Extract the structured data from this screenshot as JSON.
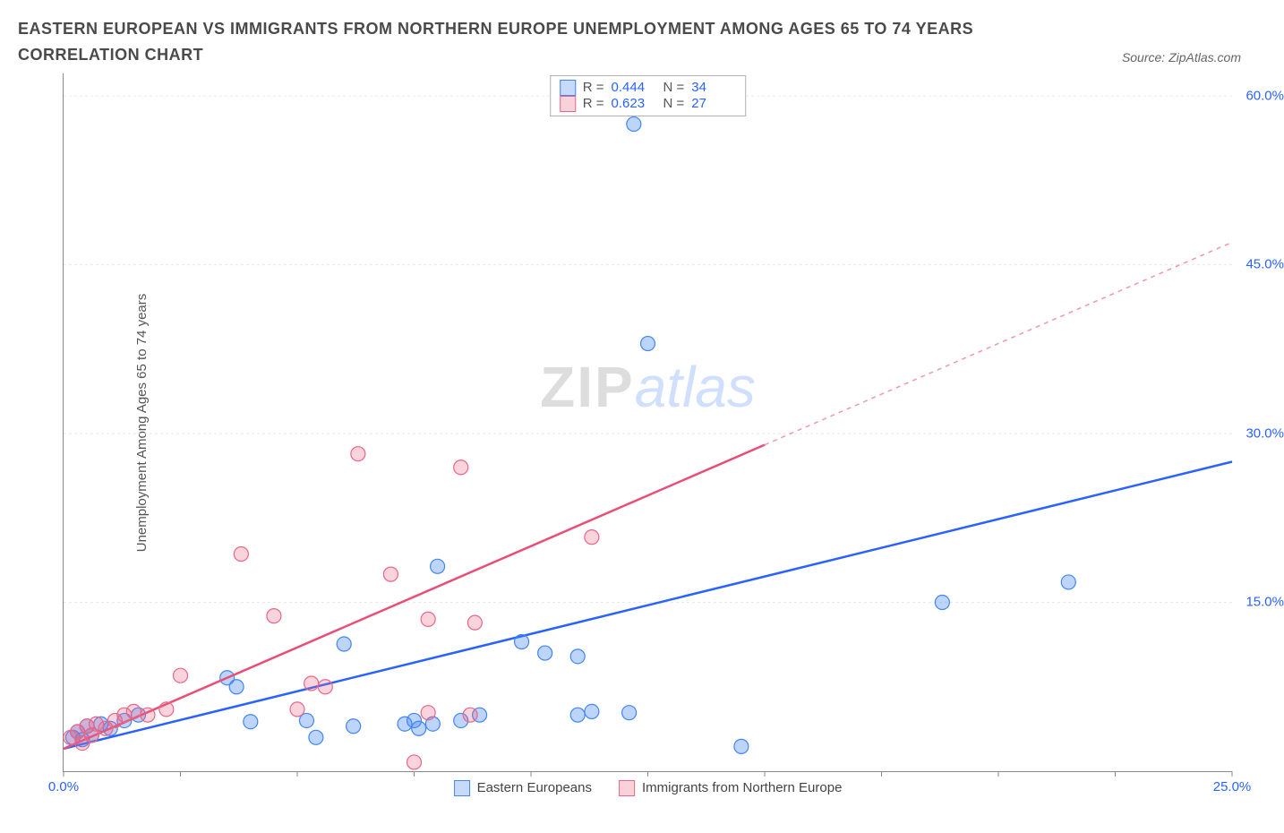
{
  "title": "EASTERN EUROPEAN VS IMMIGRANTS FROM NORTHERN EUROPE UNEMPLOYMENT AMONG AGES 65 TO 74 YEARS CORRELATION CHART",
  "source_label": "Source: ZipAtlas.com",
  "yaxis_label": "Unemployment Among Ages 65 to 74 years",
  "watermark": {
    "zip": "ZIP",
    "atlas": "atlas"
  },
  "stats": [
    {
      "color": "blue",
      "r_label": "R =",
      "r_val": "0.444",
      "n_label": "N =",
      "n_val": "34"
    },
    {
      "color": "pink",
      "r_label": "R =",
      "r_val": "0.623",
      "n_label": "N =",
      "n_val": "27"
    }
  ],
  "legend_bottom": [
    {
      "color": "blue",
      "label": "Eastern Europeans"
    },
    {
      "color": "pink",
      "label": "Immigrants from Northern Europe"
    }
  ],
  "chart": {
    "type": "scatter",
    "xlim": [
      0,
      25
    ],
    "ylim": [
      0,
      62
    ],
    "grid_color": "#e8e8e8",
    "background_color": "#ffffff",
    "y_gridlines": [
      15,
      30,
      45,
      60
    ],
    "y_tick_labels": [
      "15.0%",
      "30.0%",
      "45.0%",
      "60.0%"
    ],
    "x_ticks": [
      0,
      2.5,
      5,
      7.5,
      10,
      12.5,
      15,
      17.5,
      20,
      22.5,
      25
    ],
    "x_tick_labels": {
      "0": "0.0%",
      "25": "25.0%"
    },
    "series": [
      {
        "name": "Eastern Europeans",
        "marker_color": "rgba(66,133,244,0.35)",
        "marker_stroke": "#4285f4",
        "marker_radius": 8,
        "trend_color": "#2962ff",
        "trend_width": 2.5,
        "trend_solid_to_x": 25,
        "trend": {
          "x1": 0,
          "y1": 2.0,
          "x2": 25,
          "y2": 27.5
        },
        "points": [
          [
            0.2,
            3.0
          ],
          [
            0.3,
            3.5
          ],
          [
            0.4,
            2.8
          ],
          [
            0.5,
            4.0
          ],
          [
            0.6,
            3.2
          ],
          [
            0.8,
            4.2
          ],
          [
            1.0,
            3.8
          ],
          [
            1.3,
            4.5
          ],
          [
            1.6,
            5.0
          ],
          [
            12.2,
            57.5
          ],
          [
            12.5,
            38.0
          ],
          [
            8.0,
            18.2
          ],
          [
            3.5,
            8.3
          ],
          [
            3.7,
            7.5
          ],
          [
            4.0,
            4.4
          ],
          [
            5.2,
            4.5
          ],
          [
            5.4,
            3.0
          ],
          [
            6.0,
            11.3
          ],
          [
            6.2,
            4.0
          ],
          [
            7.3,
            4.2
          ],
          [
            7.5,
            4.5
          ],
          [
            7.6,
            3.8
          ],
          [
            7.9,
            4.2
          ],
          [
            8.5,
            4.5
          ],
          [
            8.9,
            5.0
          ],
          [
            9.8,
            11.5
          ],
          [
            10.3,
            10.5
          ],
          [
            11.0,
            10.2
          ],
          [
            11.0,
            5.0
          ],
          [
            11.3,
            5.3
          ],
          [
            12.1,
            5.2
          ],
          [
            14.5,
            2.2
          ],
          [
            18.8,
            15.0
          ],
          [
            21.5,
            16.8
          ]
        ]
      },
      {
        "name": "Immigrants from Northern Europe",
        "marker_color": "rgba(234,102,134,0.28)",
        "marker_stroke": "#ea6686",
        "marker_radius": 8,
        "trend_color": "#e94f76",
        "trend_width": 2.5,
        "trend_solid_to_x": 15,
        "trend": {
          "x1": 0,
          "y1": 2.0,
          "x2": 25,
          "y2": 47.0
        },
        "points": [
          [
            0.15,
            3.0
          ],
          [
            0.3,
            3.5
          ],
          [
            0.4,
            2.5
          ],
          [
            0.5,
            4.0
          ],
          [
            0.6,
            3.2
          ],
          [
            0.7,
            4.2
          ],
          [
            0.9,
            3.8
          ],
          [
            1.1,
            4.5
          ],
          [
            1.3,
            5.0
          ],
          [
            1.5,
            5.3
          ],
          [
            1.8,
            5.0
          ],
          [
            2.2,
            5.5
          ],
          [
            2.5,
            8.5
          ],
          [
            3.8,
            19.3
          ],
          [
            4.5,
            13.8
          ],
          [
            5.0,
            5.5
          ],
          [
            5.3,
            7.8
          ],
          [
            5.6,
            7.5
          ],
          [
            6.3,
            28.2
          ],
          [
            7.0,
            17.5
          ],
          [
            7.8,
            13.5
          ],
          [
            7.8,
            5.2
          ],
          [
            8.5,
            27.0
          ],
          [
            8.8,
            13.2
          ],
          [
            7.5,
            0.8
          ],
          [
            11.3,
            20.8
          ],
          [
            8.7,
            5.0
          ]
        ]
      }
    ]
  }
}
